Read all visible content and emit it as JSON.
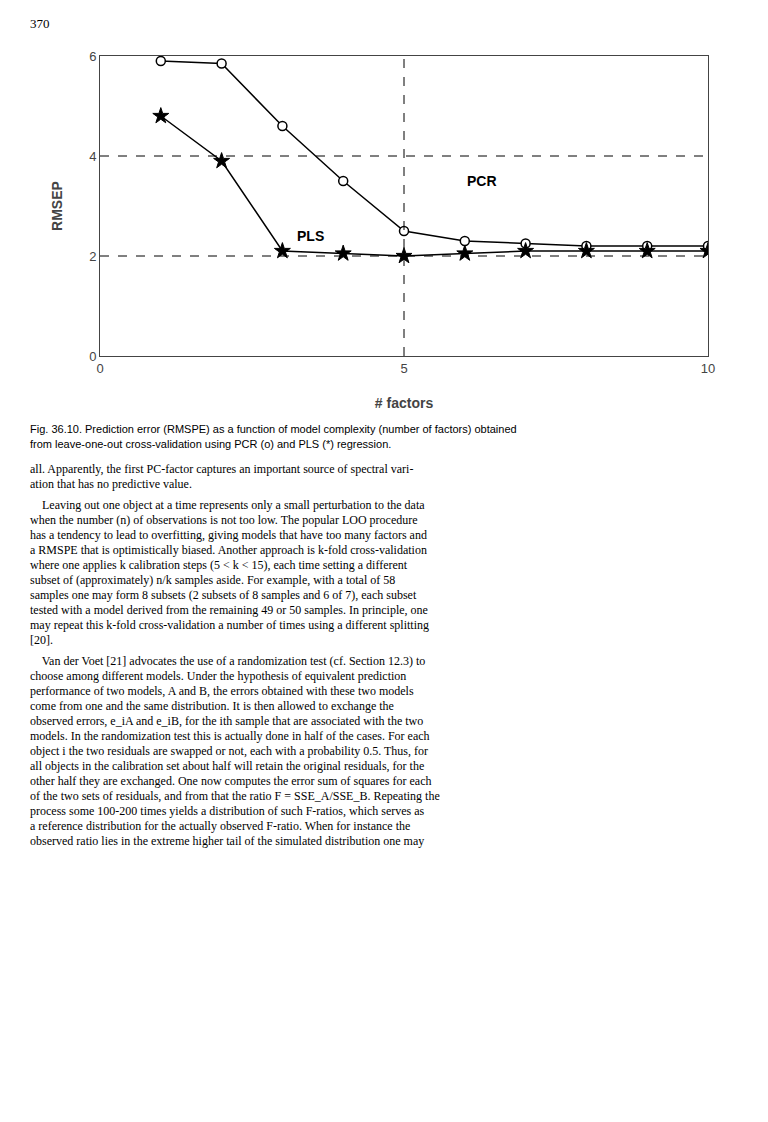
{
  "chart_data": {
    "type": "line",
    "xlabel": "# factors",
    "ylabel": "RMSEP",
    "xlim": [
      0,
      10
    ],
    "ylim": [
      0,
      6
    ],
    "xticks": [
      0,
      5,
      10
    ],
    "yticks": [
      0,
      2,
      4,
      6
    ],
    "grid": false,
    "series": [
      {
        "name": "PCR",
        "color": "#000000",
        "marker": "circle",
        "x": [
          1,
          2,
          3,
          4,
          5,
          6,
          7,
          8,
          9,
          10
        ],
        "values": [
          5.9,
          5.85,
          4.6,
          3.5,
          2.5,
          2.3,
          2.25,
          2.2,
          2.2,
          2.2
        ]
      },
      {
        "name": "PLS",
        "color": "#000000",
        "marker": "star",
        "x": [
          1,
          2,
          3,
          4,
          5,
          6,
          7,
          8,
          9,
          10
        ],
        "values": [
          4.8,
          3.9,
          2.1,
          2.05,
          2.0,
          2.05,
          2.1,
          2.1,
          2.1,
          2.1
        ]
      }
    ],
    "hlines": [
      4.0,
      2.0
    ],
    "vlines": [
      5
    ],
    "annotations": [
      {
        "text": "PCR",
        "x": 6.0,
        "y": 3.5
      },
      {
        "text": "PLS",
        "x": 3.2,
        "y": 2.4
      }
    ],
    "page_number": "370",
    "caption": [
      "Fig. 36.10. Prediction error (RMSPE) as a function of model complexity (number of factors) obtained",
      "from leave-one-out cross-validation using PCR (o) and PLS (*) regression."
    ],
    "body_text": [
      [
        "all. Apparently, the first PC-factor captures an important source of spectral vari-",
        "ation that has no predictive value."
      ],
      [
        "    Leaving out one object at a time represents only a small perturbation to the data",
        "when the number (n) of observations is not too low. The popular LOO procedure",
        "has a tendency to lead to overfitting, giving models that have too many factors and",
        "a RMSPE that is optimistically biased. Another approach is k-fold cross-validation",
        "where one applies k calibration steps (5 < k < 15), each time setting a different",
        "subset of (approximately) n/k samples aside. For example, with a total of 58",
        "samples one may form 8 subsets (2 subsets of 8 samples and 6 of 7), each subset",
        "tested with a model derived from the remaining 49 or 50 samples. In principle, one",
        "may repeat this k-fold cross-validation a number of times using a different splitting",
        "[20]."
      ],
      [
        "    Van der Voet [21] advocates the use of a randomization test (cf. Section 12.3) to",
        "choose among different models. Under the hypothesis of equivalent prediction",
        "performance of two models, A and B, the errors obtained with these two models",
        "come from one and the same distribution. It is then allowed to exchange the",
        "observed errors, e_iA and e_iB, for the ith sample that are associated with the two",
        "models. In the randomization test this is actually done in half of the cases. For each",
        "object i the two residuals are swapped or not, each with a probability 0.5. Thus, for",
        "all objects in the calibration set about half will retain the original residuals, for the",
        "other half they are exchanged. One now computes the error sum of squares for each",
        "of the two sets of residuals, and from that the ratio F = SSE_A/SSE_B. Repeating the",
        "process some 100-200 times yields a distribution of such F-ratios, which serves as",
        "a reference distribution for the actually observed F-ratio. When for instance the",
        "observed ratio lies in the extreme higher tail of the simulated distribution one may"
      ]
    ]
  }
}
